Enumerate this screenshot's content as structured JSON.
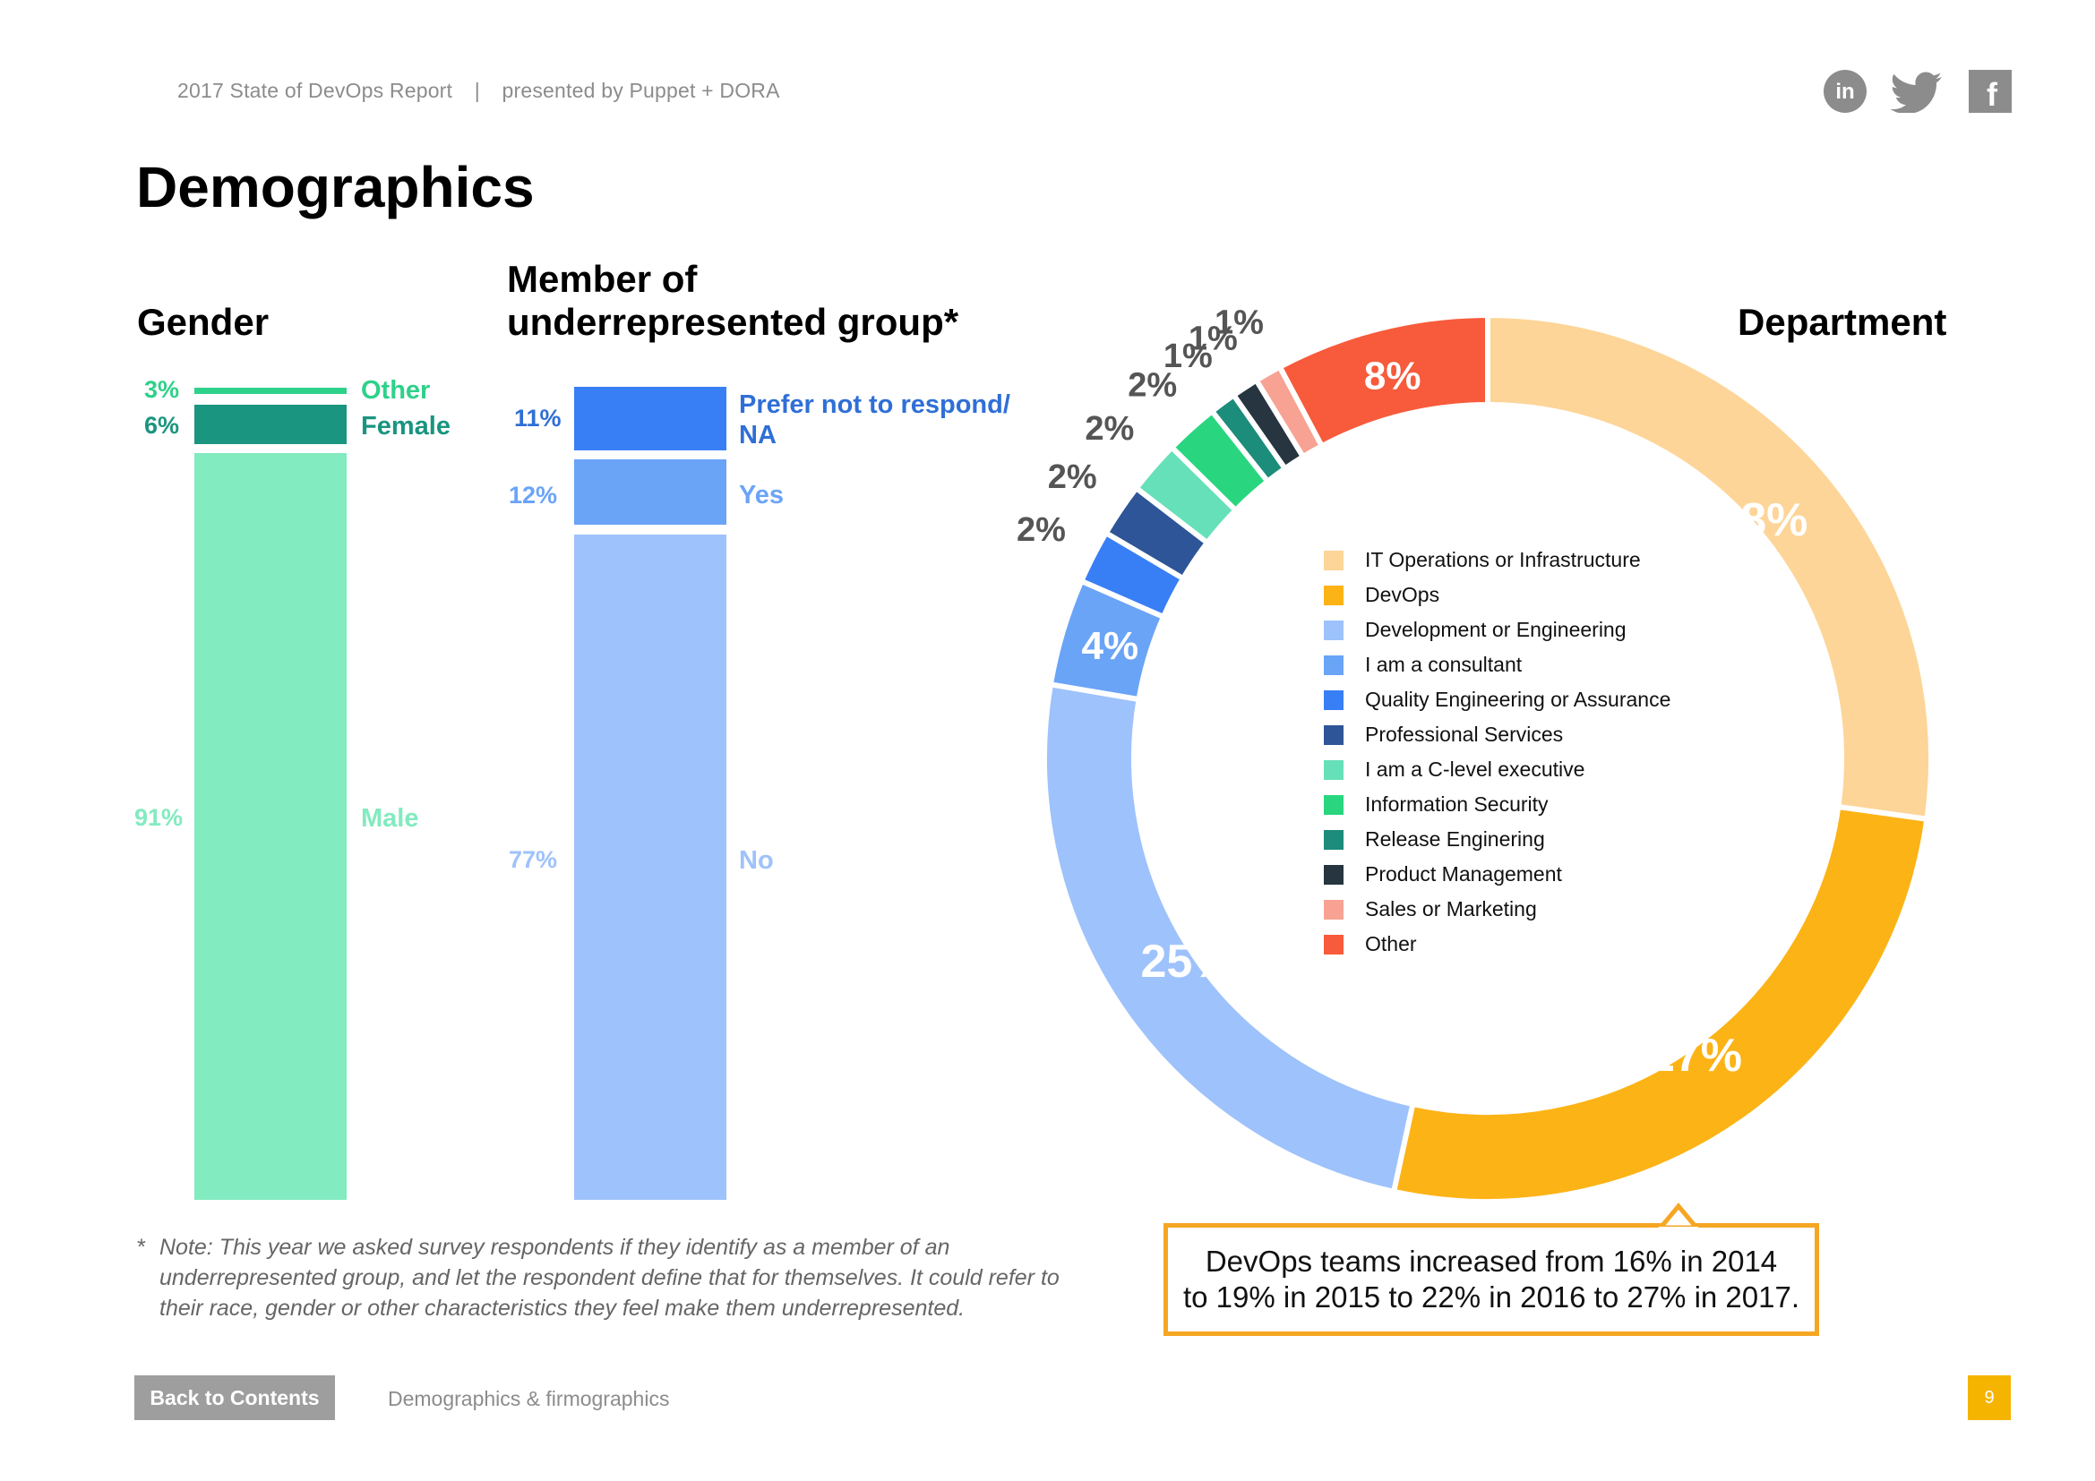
{
  "header": {
    "report": "2017 State of DevOps Report",
    "separator": "|",
    "presenter": "presented by Puppet + DORA"
  },
  "social": {
    "icons": [
      "linkedin-icon",
      "twitter-icon",
      "facebook-icon"
    ],
    "linkedin_text": "in",
    "facebook_text": "f"
  },
  "title": "Demographics",
  "gender": {
    "title": "Gender",
    "chart_color_labels": {
      "Other": "#2ed18a",
      "Female": "#1a957f",
      "Male": "#82ebc0"
    }
  },
  "underrep": {
    "title_line1": "Member of",
    "title_line2": "underrepresented group*"
  },
  "department": {
    "title": "Department"
  },
  "chart_data": [
    {
      "type": "bar",
      "stacked": true,
      "title": "Gender",
      "categories": [
        "Gender"
      ],
      "series": [
        {
          "name": "Male",
          "values": [
            91
          ],
          "label": "91%",
          "color": "#82ebc0",
          "label_color": "#82ebc0"
        },
        {
          "name": "Female",
          "values": [
            6
          ],
          "label": "6%",
          "color": "#1a957f",
          "label_color": "#1a957f"
        },
        {
          "name": "Other",
          "values": [
            3
          ],
          "label": "3%",
          "color": "#2ed18a",
          "label_color": "#2ed18a"
        }
      ]
    },
    {
      "type": "bar",
      "stacked": true,
      "title": "Member of underrepresented group*",
      "categories": [
        "Member of underrepresented group"
      ],
      "series": [
        {
          "name": "No",
          "values": [
            77
          ],
          "label": "77%",
          "color": "#9ec2fb",
          "label_color": "#9ec2fb"
        },
        {
          "name": "Yes",
          "values": [
            12
          ],
          "label": "12%",
          "color": "#6aa4f7",
          "label_color": "#6aa4f7"
        },
        {
          "name": "Prefer not to respond/ NA",
          "values": [
            11
          ],
          "label": "11%",
          "color": "#387ff5",
          "label_color": "#2f6fd6",
          "name_line1": "Prefer not to respond/",
          "name_line2": "NA"
        }
      ]
    },
    {
      "type": "pie",
      "donut": true,
      "title": "Department",
      "legend_position": "center",
      "slices": [
        {
          "name": "IT Operations or Infrastructure",
          "value": 28,
          "label": "28%",
          "color": "#fdd598",
          "label_color": "#ffffff"
        },
        {
          "name": "DevOps",
          "value": 27,
          "label": "27%",
          "color": "#fcb316",
          "label_color": "#ffffff"
        },
        {
          "name": "Development or Engineering",
          "value": 25,
          "label": "25%",
          "color": "#9ec2fb",
          "label_color": "#ffffff"
        },
        {
          "name": "I am a consultant",
          "value": 4,
          "label": "4%",
          "color": "#6aa4f7",
          "label_color": "#ffffff"
        },
        {
          "name": "Quality Engineering or Assurance",
          "value": 2,
          "label": "2%",
          "color": "#387ff5",
          "label_color": "#555555"
        },
        {
          "name": "Professional Services",
          "value": 2,
          "label": "2%",
          "color": "#2e5597",
          "label_color": "#555555"
        },
        {
          "name": "I am a C-level executive",
          "value": 2,
          "label": "2%",
          "color": "#66e0b8",
          "label_color": "#555555"
        },
        {
          "name": "Information Security",
          "value": 2,
          "label": "2%",
          "color": "#29d67f",
          "label_color": "#555555"
        },
        {
          "name": "Release Enginering",
          "value": 1,
          "label": "1%",
          "color": "#1c8c7b",
          "label_color": "#555555"
        },
        {
          "name": "Product Management",
          "value": 1,
          "label": "1%",
          "color": "#26353f",
          "label_color": "#555555"
        },
        {
          "name": "Sales or Marketing",
          "value": 1,
          "label": "1%",
          "color": "#f7a293",
          "label_color": "#555555"
        },
        {
          "name": "Other",
          "value": 8,
          "label": "8%",
          "color": "#f75b3b",
          "label_color": "#ffffff"
        }
      ]
    }
  ],
  "footnote": {
    "star": "*",
    "text": "Note: This year we asked survey respondents if they identify as a member of an underrepresented group, and let the respondent define that for themselves. It could refer to their race, gender or other characteristics they feel make them underrepresented."
  },
  "callout": {
    "line1": "DevOps teams increased from 16% in 2014",
    "line2": "to 19% in 2015 to 22% in 2016 to 27% in 2017.",
    "border_color": "#f5a623"
  },
  "footer": {
    "back_button": "Back to Contents",
    "section": "Demographics & firmographics",
    "page_number": "9"
  }
}
